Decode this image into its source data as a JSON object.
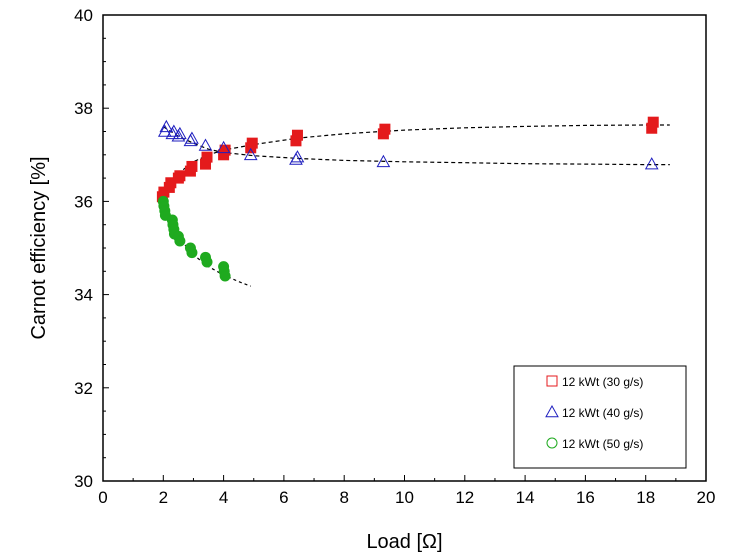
{
  "chart_data": {
    "type": "scatter",
    "title": "",
    "xlabel": "Load [Ω]",
    "ylabel": "Carnot efficiency  [%]",
    "xlim": [
      0,
      20
    ],
    "ylim": [
      30,
      40
    ],
    "xticks": [
      0,
      2,
      4,
      6,
      8,
      10,
      12,
      14,
      16,
      18,
      20
    ],
    "yticks": [
      30,
      32,
      34,
      36,
      38,
      40
    ],
    "grid": false,
    "legend_position": "bottom-right",
    "series": [
      {
        "name": "12 kWt (30 g/s)",
        "marker": "square",
        "color": "#e41a1c",
        "points": [
          [
            1.97,
            36.1
          ],
          [
            2.02,
            36.2
          ],
          [
            2.2,
            36.3
          ],
          [
            2.25,
            36.4
          ],
          [
            2.5,
            36.5
          ],
          [
            2.55,
            36.55
          ],
          [
            2.9,
            36.65
          ],
          [
            2.95,
            36.75
          ],
          [
            3.4,
            36.8
          ],
          [
            3.45,
            36.95
          ],
          [
            4.0,
            37.0
          ],
          [
            4.05,
            37.1
          ],
          [
            4.9,
            37.15
          ],
          [
            4.95,
            37.25
          ],
          [
            6.4,
            37.3
          ],
          [
            6.45,
            37.42
          ],
          [
            9.3,
            37.45
          ],
          [
            9.35,
            37.55
          ],
          [
            18.2,
            37.57
          ],
          [
            18.25,
            37.7
          ]
        ],
        "trend": [
          [
            1.95,
            36.1
          ],
          [
            2.2,
            36.4
          ],
          [
            2.6,
            36.65
          ],
          [
            3.0,
            36.85
          ],
          [
            3.5,
            37.0
          ],
          [
            4.0,
            37.1
          ],
          [
            5.0,
            37.22
          ],
          [
            6.5,
            37.36
          ],
          [
            8.0,
            37.45
          ],
          [
            10.0,
            37.53
          ],
          [
            12.0,
            37.58
          ],
          [
            14.0,
            37.61
          ],
          [
            16.0,
            37.63
          ],
          [
            18.0,
            37.64
          ],
          [
            18.8,
            37.64
          ]
        ]
      },
      {
        "name": "12 kWt (40 g/s)",
        "marker": "triangle",
        "color": "#1f1fbf",
        "points": [
          [
            2.05,
            37.5
          ],
          [
            2.1,
            37.6
          ],
          [
            2.3,
            37.45
          ],
          [
            2.35,
            37.5
          ],
          [
            2.5,
            37.4
          ],
          [
            2.55,
            37.45
          ],
          [
            2.9,
            37.3
          ],
          [
            2.95,
            37.35
          ],
          [
            3.4,
            37.2
          ],
          [
            4.0,
            37.15
          ],
          [
            4.9,
            37.0
          ],
          [
            6.4,
            36.9
          ],
          [
            6.45,
            36.95
          ],
          [
            9.3,
            36.85
          ],
          [
            18.2,
            36.8
          ]
        ],
        "trend": [
          [
            2.0,
            37.6
          ],
          [
            2.5,
            37.4
          ],
          [
            3.0,
            37.25
          ],
          [
            3.5,
            37.12
          ],
          [
            4.0,
            37.05
          ],
          [
            5.0,
            36.98
          ],
          [
            6.5,
            36.92
          ],
          [
            8.0,
            36.88
          ],
          [
            10.0,
            36.85
          ],
          [
            12.0,
            36.83
          ],
          [
            14.0,
            36.81
          ],
          [
            16.0,
            36.8
          ],
          [
            18.0,
            36.79
          ],
          [
            18.8,
            36.79
          ]
        ]
      },
      {
        "name": "12 kWt (50 g/s)",
        "marker": "circle",
        "color": "#1faa1f",
        "points": [
          [
            2.0,
            36.0
          ],
          [
            2.02,
            35.9
          ],
          [
            2.05,
            35.8
          ],
          [
            2.07,
            35.7
          ],
          [
            2.3,
            35.6
          ],
          [
            2.32,
            35.5
          ],
          [
            2.35,
            35.4
          ],
          [
            2.37,
            35.3
          ],
          [
            2.5,
            35.25
          ],
          [
            2.55,
            35.15
          ],
          [
            2.9,
            35.0
          ],
          [
            2.95,
            34.9
          ],
          [
            3.4,
            34.8
          ],
          [
            3.45,
            34.7
          ],
          [
            4.0,
            34.6
          ],
          [
            4.02,
            34.5
          ],
          [
            4.05,
            34.4
          ]
        ],
        "trend": [
          [
            1.95,
            36.1
          ],
          [
            2.1,
            35.8
          ],
          [
            2.3,
            35.5
          ],
          [
            2.5,
            35.25
          ],
          [
            2.8,
            35.0
          ],
          [
            3.1,
            34.8
          ],
          [
            3.5,
            34.6
          ],
          [
            4.0,
            34.42
          ],
          [
            4.5,
            34.28
          ],
          [
            4.9,
            34.18
          ]
        ]
      }
    ]
  }
}
